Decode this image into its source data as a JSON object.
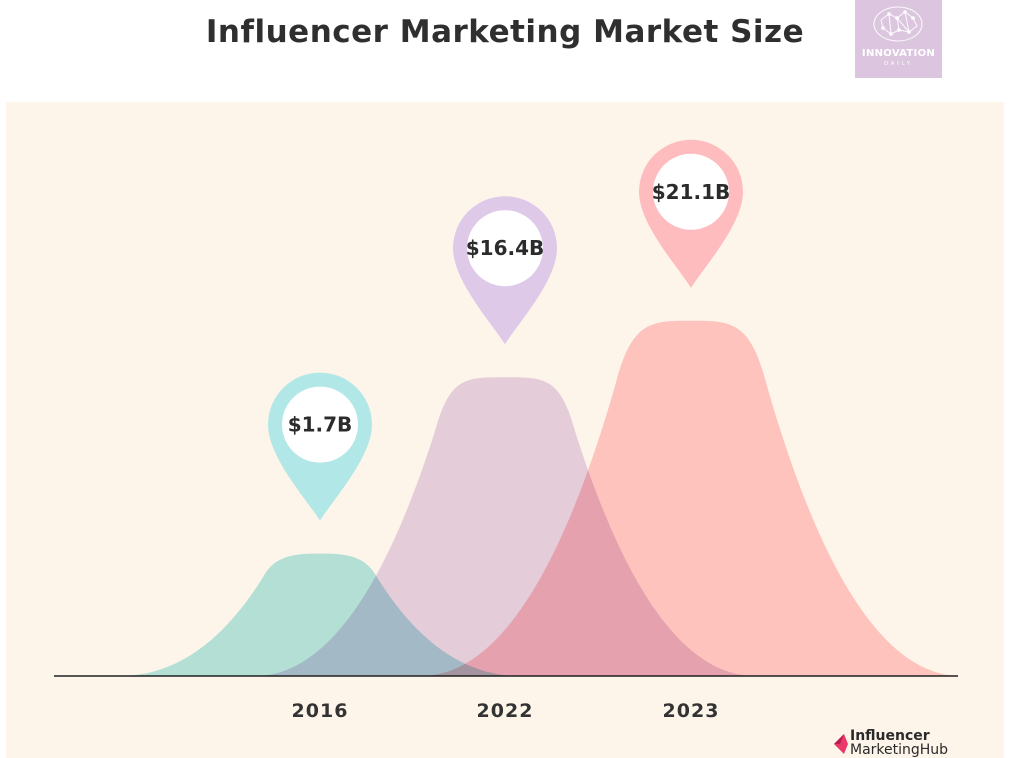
{
  "title": "Influencer Marketing Market Size",
  "logo": {
    "name": "INNOVATION",
    "sub": "DAILY"
  },
  "brand": {
    "line1": "Influencer",
    "line2": "MarketingHub"
  },
  "chart_data": {
    "type": "area",
    "title": "Influencer Marketing Market Size",
    "categories": [
      "2016",
      "2022",
      "2023"
    ],
    "values": [
      1.7,
      16.4,
      21.1
    ],
    "value_labels": [
      "$1.7B",
      "$16.4B",
      "$21.1B"
    ],
    "unit": "USD billions",
    "colors": [
      "#b2e7e8",
      "#e2cce9",
      "#ffbcbf"
    ],
    "pin_colors": [
      "#b2e7e8",
      "#dfc9e9",
      "#ffbcbf"
    ],
    "xlabel": "",
    "ylabel": "",
    "grid": false
  }
}
